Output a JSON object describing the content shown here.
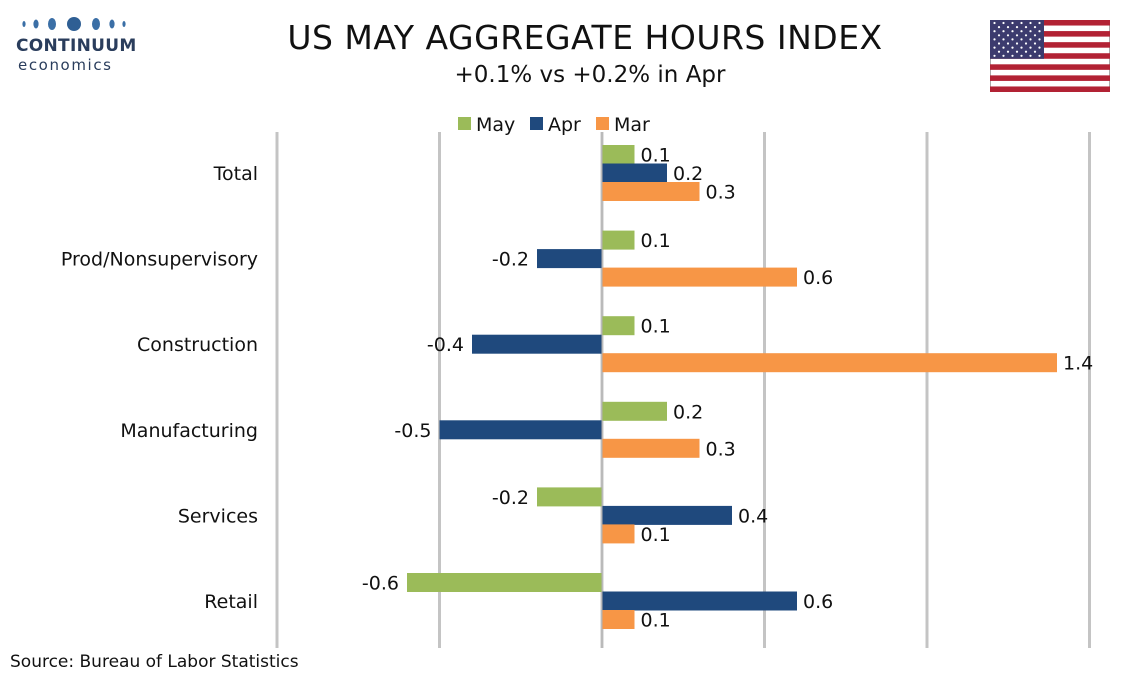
{
  "logo": {
    "name": "CONTINUUM",
    "sub": "economics"
  },
  "title": "US MAY AGGREGATE HOURS INDEX",
  "subtitle": "+0.1% vs +0.2% in Apr",
  "source": "Source: Bureau of Labor Statistics",
  "flag_icon": "us-flag-icon",
  "chart_data": {
    "type": "bar",
    "orientation": "horizontal",
    "categories": [
      "Total",
      "Prod/Nonsupervisory",
      "Construction",
      "Manufacturing",
      "Services",
      "Retail"
    ],
    "series": [
      {
        "name": "May",
        "color": "#9bbb59",
        "values": [
          0.1,
          0.1,
          0.1,
          0.2,
          -0.2,
          -0.6
        ],
        "labels": [
          "0.1",
          "0.1",
          "0.1",
          "0.2",
          "-0.2",
          "-0.6"
        ]
      },
      {
        "name": "Apr",
        "color": "#1f497d",
        "values": [
          0.2,
          -0.2,
          -0.4,
          -0.5,
          0.4,
          0.6
        ],
        "labels": [
          "0.2",
          "-0.2",
          "-0.4",
          "-0.5",
          "0.4",
          "0.6"
        ]
      },
      {
        "name": "Mar",
        "color": "#f79646",
        "values": [
          0.3,
          0.6,
          1.4,
          0.3,
          0.1,
          0.1
        ],
        "labels": [
          "0.3",
          "0.6",
          "1.4",
          "0.3",
          "0.1",
          "0.1"
        ]
      }
    ],
    "xlim": [
      -1.0,
      1.5
    ],
    "grid": true,
    "legend": "top"
  }
}
